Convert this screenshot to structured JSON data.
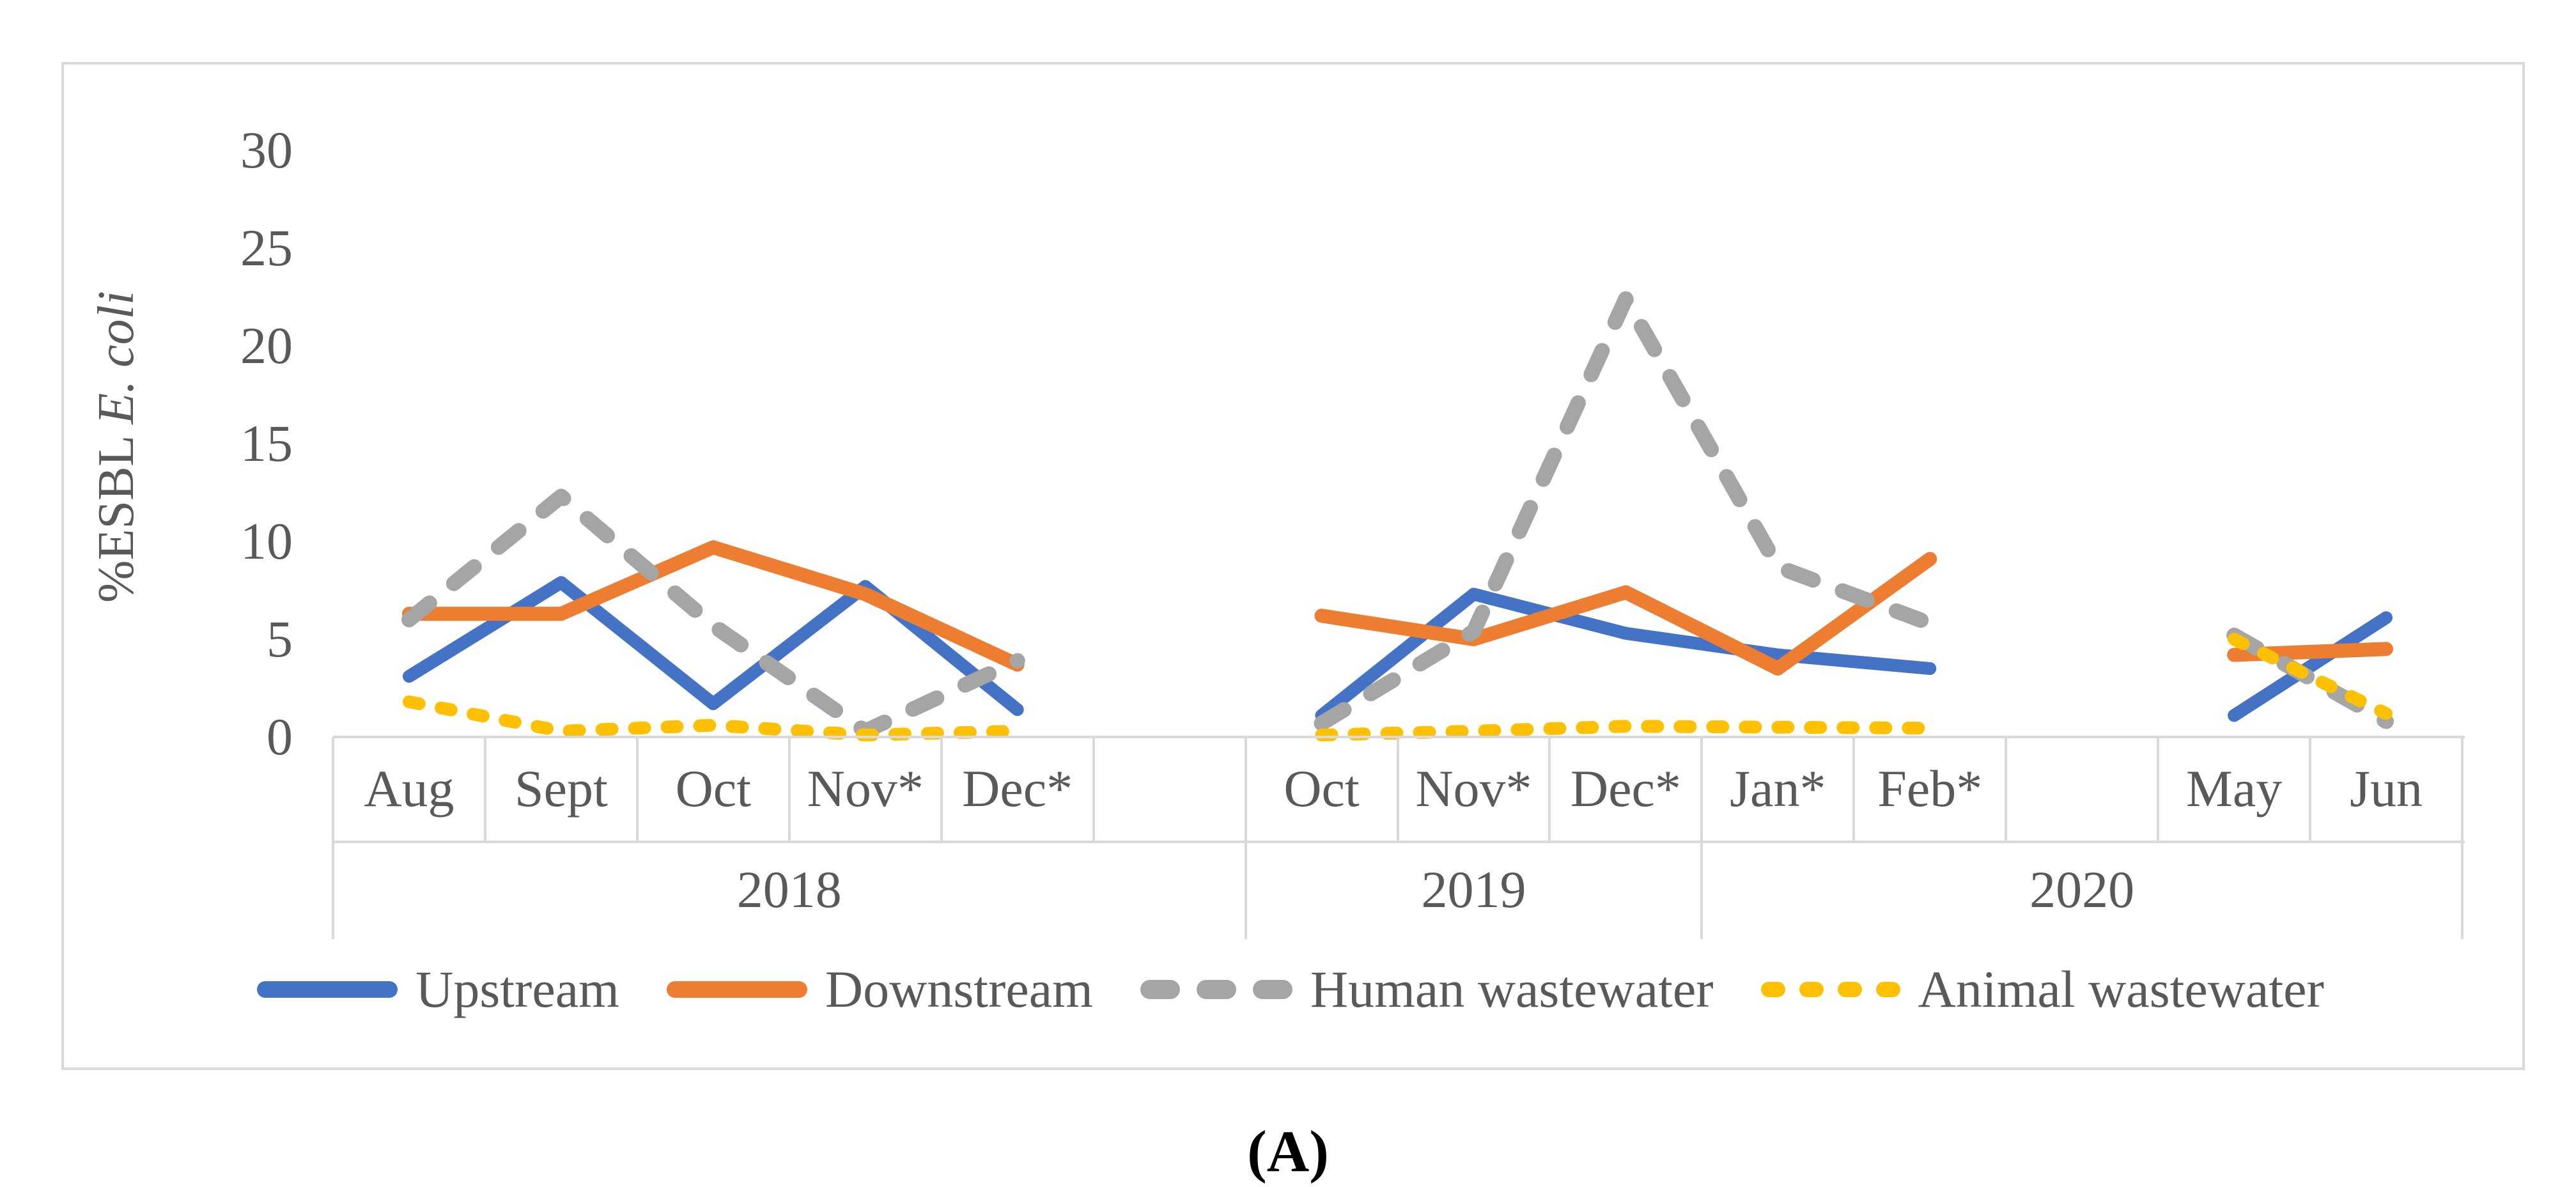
{
  "figure": {
    "caption": "(A)",
    "y_axis_title_prefix": "%ESBL ",
    "y_axis_title_italic": "E. coli",
    "text_color": "#595959",
    "grid_color": "#d9d9d9"
  },
  "chart_data": {
    "type": "line",
    "title": "",
    "xlabel": "",
    "ylabel": "%ESBL E. coli",
    "ylim": [
      0,
      30
    ],
    "yticks": [
      0,
      5,
      10,
      15,
      20,
      25,
      30
    ],
    "grid": false,
    "legend_position": "bottom",
    "categories": [
      "Aug",
      "Sept",
      "Oct",
      "Nov*",
      "Dec*",
      "",
      "Oct",
      "Nov*",
      "Dec*",
      "Jan*",
      "Feb*",
      "",
      "May",
      "Jun"
    ],
    "year_groups": [
      {
        "label": "2018",
        "start": 0,
        "end": 6
      },
      {
        "label": "2019",
        "start": 6,
        "end": 9
      },
      {
        "label": "2020",
        "start": 9,
        "end": 14
      }
    ],
    "series": [
      {
        "name": "Upstream",
        "color": "#4472C4",
        "style": "solid",
        "values": [
          3.1,
          7.9,
          1.7,
          7.7,
          1.4,
          null,
          1.1,
          7.3,
          5.3,
          4.2,
          3.5,
          null,
          1.1,
          6.1
        ]
      },
      {
        "name": "Downstream",
        "color": "#ED7D31",
        "style": "solid",
        "values": [
          6.3,
          6.3,
          9.7,
          7.3,
          3.7,
          null,
          6.2,
          5.0,
          7.4,
          3.5,
          9.1,
          null,
          4.2,
          4.5
        ]
      },
      {
        "name": "Human wastewater",
        "color": "#A5A5A5",
        "style": "dashed",
        "values": [
          6.0,
          12.3,
          5.7,
          0.3,
          3.9,
          null,
          0.7,
          5.4,
          22.4,
          8.7,
          5.8,
          null,
          5.2,
          0.8
        ]
      },
      {
        "name": "Animal wastewater",
        "color": "#FFC000",
        "style": "dotted",
        "values": [
          1.8,
          0.3,
          0.6,
          0.1,
          0.3,
          null,
          0.1,
          0.3,
          0.55,
          0.5,
          0.45,
          null,
          5.0,
          1.2
        ]
      }
    ]
  }
}
